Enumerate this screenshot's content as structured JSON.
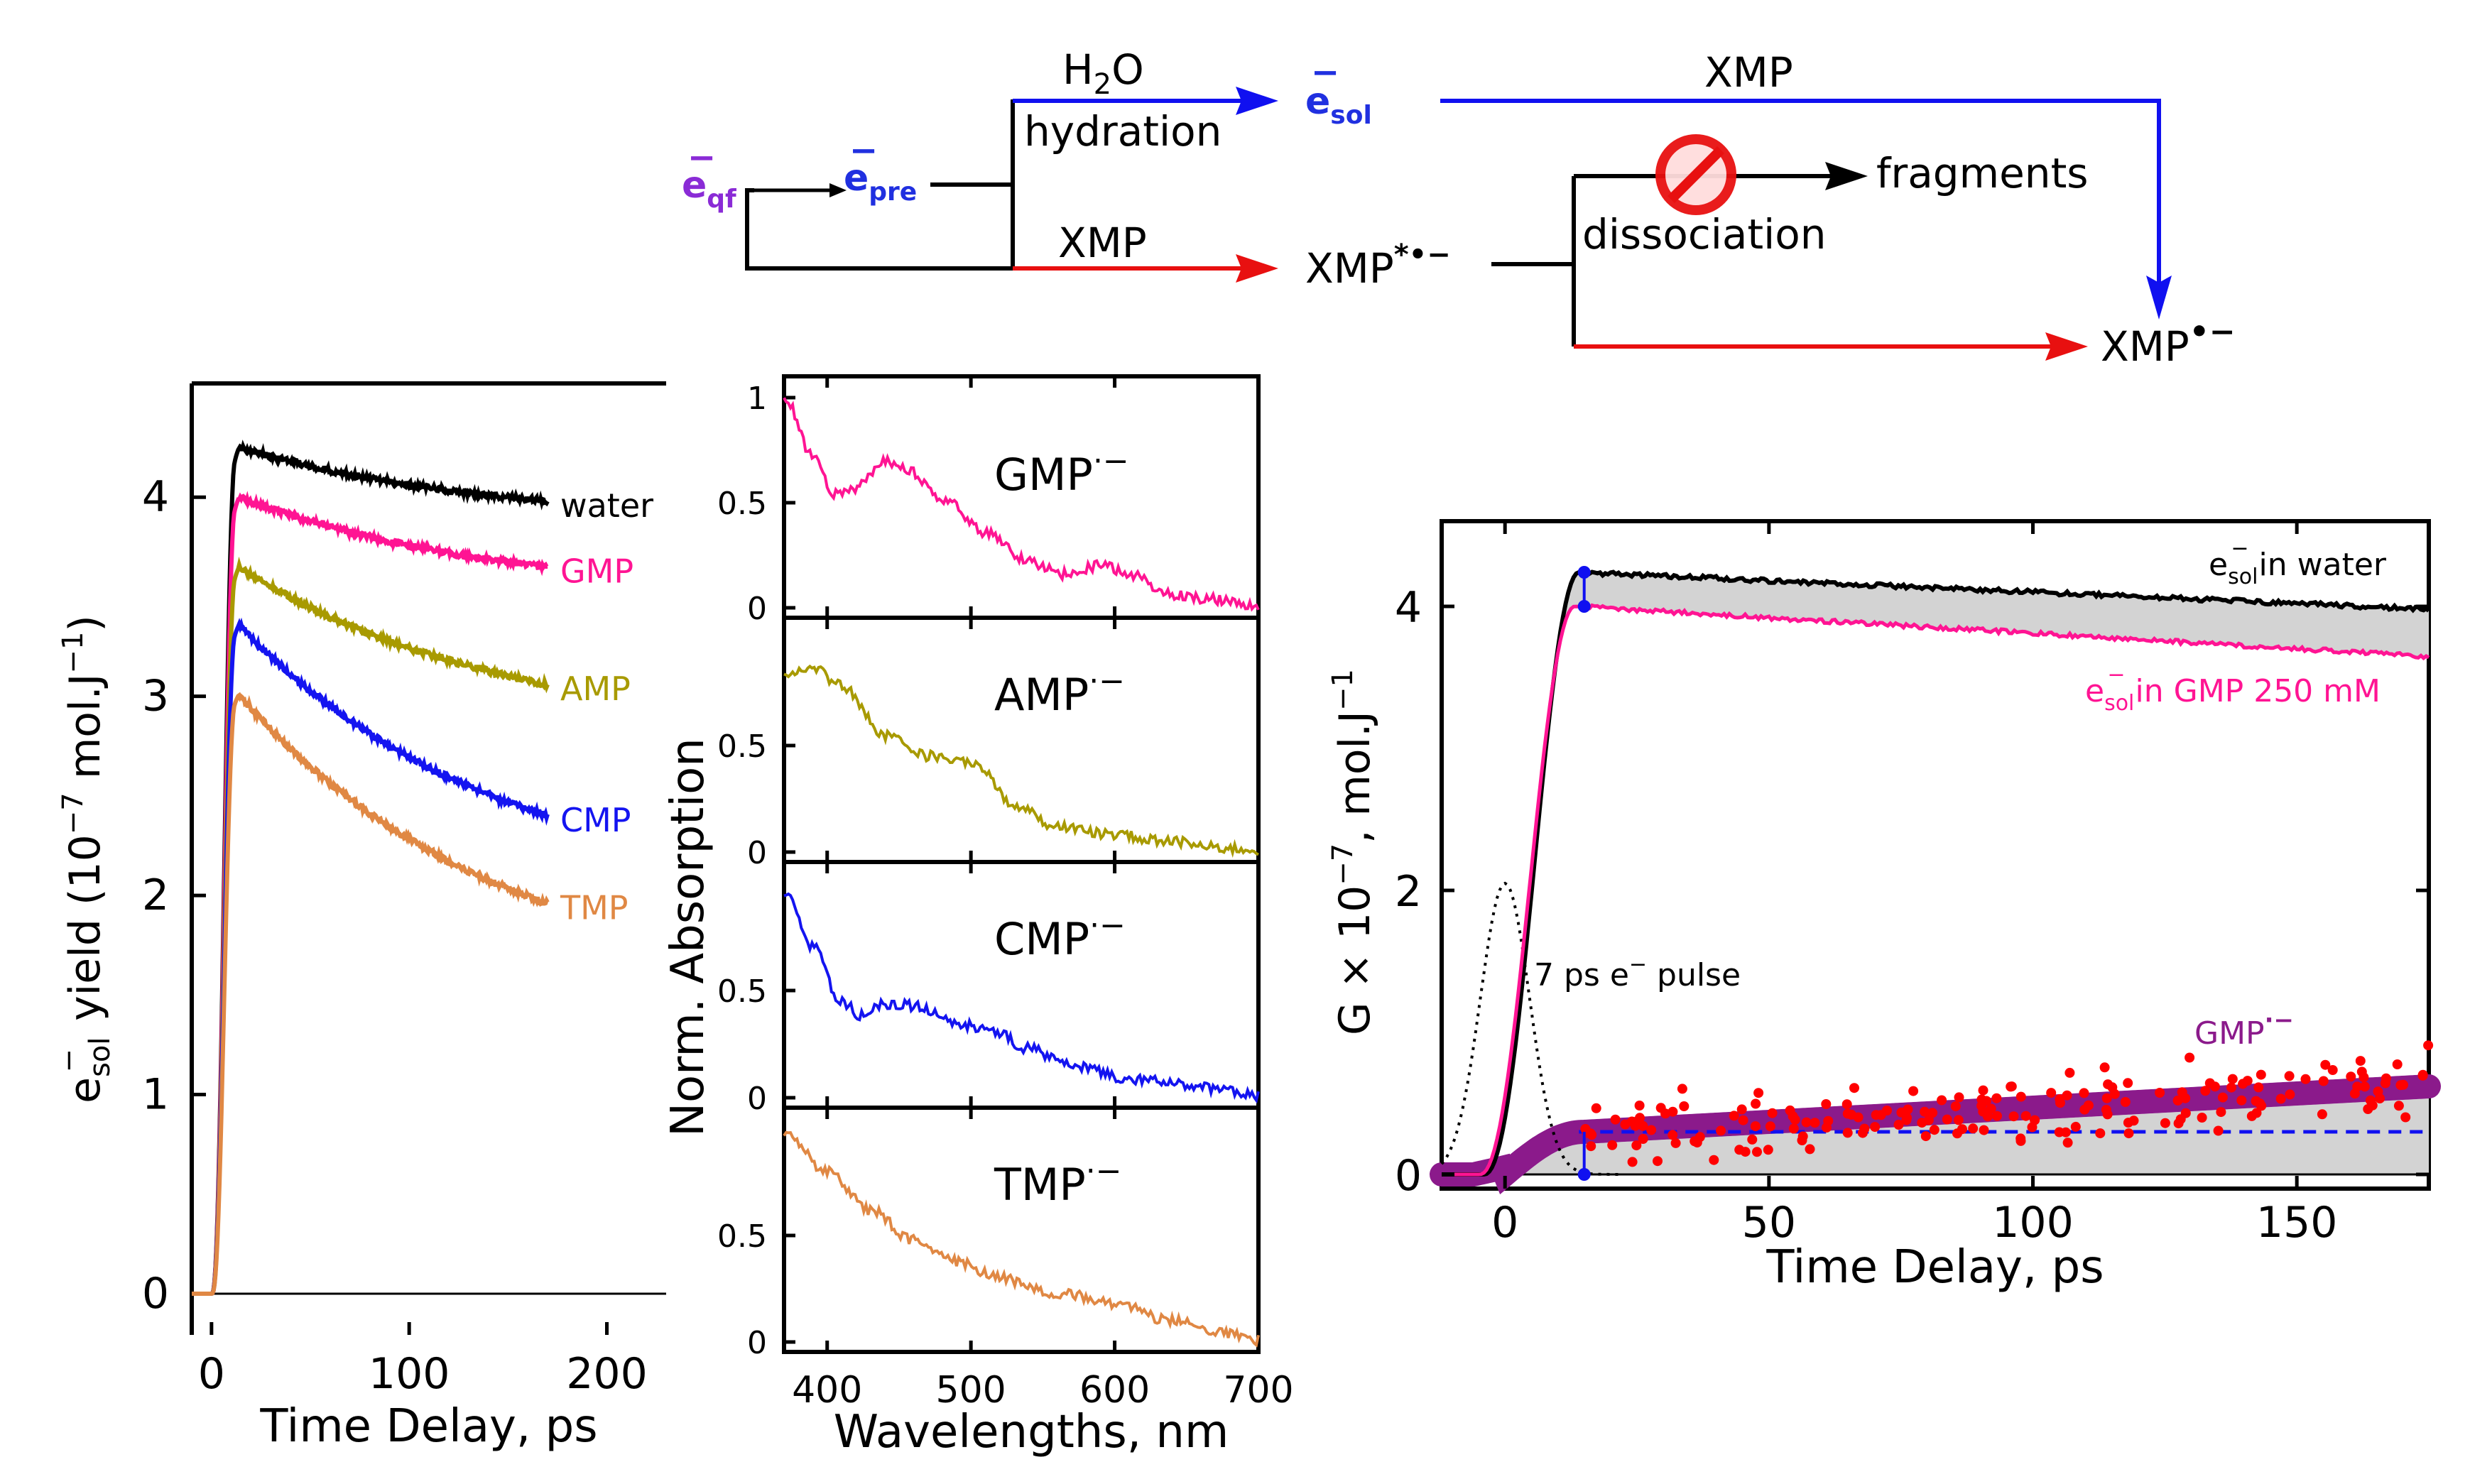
{
  "scheme": {
    "e_qf": "e",
    "e_qf_sub": "qf",
    "e_pre": "e",
    "e_pre_sub": "pre",
    "e_sol": "e",
    "e_sol_sub": "sol",
    "minus": "−",
    "h2o": "H",
    "h2o_sub": "2",
    "h2o_o": "O",
    "hydration": "hydration",
    "xmp_lower": "XMP",
    "xmp_top": "XMP",
    "xmp_excited": "XMP",
    "xmp_excited_sup": "*•−",
    "dissociation": "dissociation",
    "fragments": "fragments",
    "xmp_radical": "XMP",
    "xmp_radical_sup": "•−",
    "colors": {
      "blue": "#1010f0",
      "red": "#e81010",
      "purple": "#8a2bd6",
      "black": "#000000"
    }
  },
  "chart_data": [
    {
      "type": "line",
      "id": "esol-yield",
      "xlabel": "Time Delay, ps",
      "ylabel": "e",
      "ylabel_sub": "sol",
      "ylabel_sup": "−",
      "ylabel_rest": "yield (10",
      "ylabel_exp": "−7",
      "ylabel_unit": "mol.J",
      "ylabel_unit_exp": "−1",
      "ylabel_close": ")",
      "xlim": [
        -10,
        230
      ],
      "ylim": [
        0,
        4.5
      ],
      "xticks": [
        "0",
        "100",
        "200"
      ],
      "yticks": [
        "0",
        "1",
        "2",
        "3",
        "4"
      ],
      "series": [
        {
          "name": "water",
          "color": "#000000",
          "peak": 4.25,
          "end": 3.98
        },
        {
          "name": "GMP",
          "color": "#ff1493",
          "peak": 4.0,
          "end": 3.65
        },
        {
          "name": "AMP",
          "color": "#a89a00",
          "peak": 3.65,
          "end": 3.06
        },
        {
          "name": "CMP",
          "color": "#1414f0",
          "peak": 3.36,
          "end": 2.4
        },
        {
          "name": "TMP",
          "color": "#e08844",
          "peak": 3.01,
          "end": 1.96
        }
      ],
      "t_end": 170
    },
    {
      "type": "line",
      "id": "absorption-spectra",
      "xlabel": "Wavelengths, nm",
      "ylabel": "Norm. Absorption",
      "xlim": [
        370,
        700
      ],
      "xticks": [
        "400",
        "500",
        "600",
        "700"
      ],
      "panels": [
        {
          "name": "GMP",
          "sup": "·−",
          "color": "#ff1493",
          "yticks": [
            "1",
            "0.5",
            "0"
          ],
          "profile": [
            [
              370,
              1.0
            ],
            [
              390,
              0.72
            ],
            [
              405,
              0.54
            ],
            [
              420,
              0.57
            ],
            [
              440,
              0.7
            ],
            [
              455,
              0.66
            ],
            [
              480,
              0.52
            ],
            [
              510,
              0.36
            ],
            [
              540,
              0.22
            ],
            [
              565,
              0.16
            ],
            [
              590,
              0.2
            ],
            [
              610,
              0.16
            ],
            [
              640,
              0.06
            ],
            [
              670,
              0.04
            ],
            [
              700,
              0.01
            ]
          ]
        },
        {
          "name": "AMP",
          "sup": "·−",
          "color": "#a89a00",
          "yticks": [
            "0.5",
            "0"
          ],
          "profile": [
            [
              370,
              0.84
            ],
            [
              390,
              0.86
            ],
            [
              410,
              0.78
            ],
            [
              440,
              0.55
            ],
            [
              470,
              0.45
            ],
            [
              490,
              0.44
            ],
            [
              505,
              0.4
            ],
            [
              530,
              0.22
            ],
            [
              560,
              0.12
            ],
            [
              600,
              0.08
            ],
            [
              640,
              0.05
            ],
            [
              670,
              0.02
            ],
            [
              700,
              0.01
            ]
          ]
        },
        {
          "name": "CMP",
          "sup": "·−",
          "color": "#1414f0",
          "yticks": [
            "0.5",
            "0"
          ],
          "profile": [
            [
              370,
              0.95
            ],
            [
              390,
              0.7
            ],
            [
              410,
              0.45
            ],
            [
              425,
              0.38
            ],
            [
              440,
              0.44
            ],
            [
              460,
              0.43
            ],
            [
              490,
              0.35
            ],
            [
              515,
              0.31
            ],
            [
              540,
              0.23
            ],
            [
              570,
              0.15
            ],
            [
              610,
              0.09
            ],
            [
              650,
              0.06
            ],
            [
              680,
              0.03
            ],
            [
              700,
              0.01
            ]
          ]
        },
        {
          "name": "TMP",
          "sup": "·−",
          "color": "#e08844",
          "yticks": [
            "0.5",
            "0"
          ],
          "profile": [
            [
              370,
              0.98
            ],
            [
              400,
              0.8
            ],
            [
              430,
              0.62
            ],
            [
              460,
              0.48
            ],
            [
              490,
              0.38
            ],
            [
              520,
              0.3
            ],
            [
              560,
              0.23
            ],
            [
              600,
              0.18
            ],
            [
              640,
              0.1
            ],
            [
              670,
              0.05
            ],
            [
              700,
              0.01
            ]
          ]
        }
      ]
    },
    {
      "type": "line",
      "id": "gmp-kinetics",
      "xlabel": "Time Delay, ps",
      "ylabel": "G × 10",
      "ylabel_exp": "−7",
      "ylabel_unit": ", mol.J",
      "ylabel_unit_exp": "−1",
      "xlim": [
        -12,
        175
      ],
      "ylim": [
        -0.1,
        4.6
      ],
      "xticks": [
        "0",
        "50",
        "100",
        "150"
      ],
      "yticks": [
        "0",
        "2",
        "4"
      ],
      "water_label": "e",
      "water_label_sub": "sol",
      "water_label_sup": "−",
      "water_label_rest": " in water",
      "gmp_label": "e",
      "gmp_label_sub": "sol",
      "gmp_label_sup": "−",
      "gmp_label_rest": " in GMP 250 mM",
      "pulse_label": "7 ps e",
      "pulse_label_sup": "−",
      "pulse_label_rest": " pulse",
      "radical_label": "GMP",
      "radical_label_sup": "·−",
      "water_curve": {
        "peak": 4.24,
        "end": 3.98
      },
      "gmp_curve": {
        "peak": 4.0,
        "end": 3.65
      },
      "radical_fit": {
        "plateau_start": 0.3,
        "end": 0.62
      },
      "dashed_level": 0.3,
      "marker_time": 15,
      "colors": {
        "water": "#000000",
        "gmp": "#ff1493",
        "fit": "#8b1a8b",
        "points": "#ff0000",
        "dashed": "#1010f0",
        "fill": "#d3d3d3"
      }
    }
  ]
}
